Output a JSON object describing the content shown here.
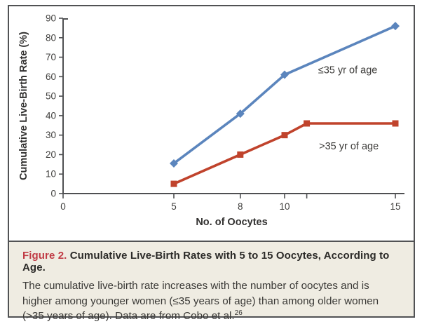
{
  "figure": {
    "label": "Figure 2.",
    "title": "Cumulative Live-Birth Rates with 5 to 15 Oocytes, According to Age.",
    "caption": "The cumulative live-birth rate increases with the number of oocytes and is higher among younger women (≤35 years of age) than among older women (>35 years of age). Data are from Cobo et al.",
    "reference": "26",
    "label_color": "#c03a44"
  },
  "chart_data": {
    "type": "line",
    "xlabel": "No. of Oocytes",
    "ylabel": "Cumulative Live-Birth Rate (%)",
    "xlim": [
      0,
      15
    ],
    "ylim": [
      0,
      90
    ],
    "grid": false,
    "legend_position": "inline-annotations",
    "axis_color": "#4f5052",
    "tick_label_color": "#3f3e3c",
    "x_ticks": [
      {
        "v": 0,
        "label": "0"
      },
      {
        "v": 5,
        "label": "5"
      },
      {
        "v": 8,
        "label": "8"
      },
      {
        "v": 10,
        "label": "10"
      },
      {
        "v": 11,
        "label": ""
      },
      {
        "v": 15,
        "label": "15"
      }
    ],
    "y_ticks": [
      0,
      10,
      20,
      30,
      40,
      50,
      60,
      70,
      80,
      90
    ],
    "series": [
      {
        "name": "≤35 yr of age",
        "color": "#5b85bd",
        "marker": "diamond",
        "points": [
          [
            5,
            15.5
          ],
          [
            8,
            41
          ],
          [
            10,
            61
          ],
          [
            15,
            86
          ]
        ],
        "label_x": 12.85,
        "label_y": 63.5
      },
      {
        "name": ">35 yr of age",
        "color": "#c0432c",
        "marker": "square",
        "points": [
          [
            5,
            5
          ],
          [
            8,
            20
          ],
          [
            10,
            30
          ],
          [
            11,
            36
          ],
          [
            15,
            36
          ]
        ],
        "label_x": 12.9,
        "label_y": 24.5
      }
    ]
  }
}
